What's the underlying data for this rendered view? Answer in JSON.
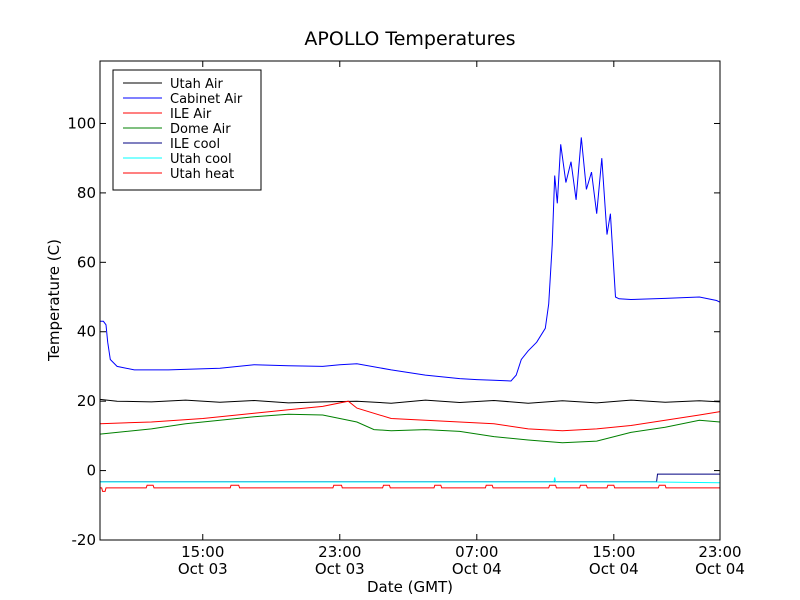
{
  "chart_data": {
    "type": "line",
    "title": "APOLLO Temperatures",
    "xlabel": "Date (GMT)",
    "ylabel": "Temperature (C)",
    "ylim": [
      -20,
      118
    ],
    "xlim": [
      9,
      45.2
    ],
    "x_unit": "hours since Oct 03 00:00 GMT",
    "yticks": [
      {
        "v": -20,
        "label": "-20"
      },
      {
        "v": 0,
        "label": "0"
      },
      {
        "v": 20,
        "label": "20"
      },
      {
        "v": 40,
        "label": "40"
      },
      {
        "v": 60,
        "label": "60"
      },
      {
        "v": 80,
        "label": "80"
      },
      {
        "v": 100,
        "label": "100"
      }
    ],
    "xticks": [
      {
        "v": 15,
        "time": "15:00",
        "date": "Oct 03"
      },
      {
        "v": 23,
        "time": "23:00",
        "date": "Oct 03"
      },
      {
        "v": 31,
        "time": "07:00",
        "date": "Oct 04"
      },
      {
        "v": 39,
        "time": "15:00",
        "date": "Oct 04"
      },
      {
        "v": 47,
        "time": "23:00",
        "date": "Oct 04"
      }
    ],
    "legend_position": "top-left",
    "series": [
      {
        "name": "Utah Air",
        "color": "#000000",
        "x": [
          9,
          10,
          12,
          14,
          16,
          18,
          20,
          22,
          24,
          26,
          28,
          30,
          32,
          34,
          36,
          38,
          40,
          42,
          44,
          45.2
        ],
        "y": [
          20.5,
          20,
          19.8,
          20.3,
          19.7,
          20.2,
          19.5,
          19.8,
          20,
          19.4,
          20.3,
          19.6,
          20.2,
          19.4,
          20.1,
          19.5,
          20.3,
          19.7,
          20.1,
          19.8
        ]
      },
      {
        "name": "Cabinet Air",
        "color": "#0000ff",
        "x": [
          9,
          9.2,
          9.35,
          9.45,
          9.6,
          10,
          11,
          13,
          16,
          18,
          20,
          22,
          23,
          24,
          26,
          28,
          30,
          31,
          32,
          33,
          33.3,
          33.6,
          34,
          34.5,
          35,
          35.2,
          35.4,
          35.55,
          35.7,
          35.9,
          36.2,
          36.5,
          36.8,
          37.1,
          37.4,
          37.7,
          38,
          38.3,
          38.6,
          38.8,
          39,
          39.1,
          39.3,
          40,
          42,
          44,
          45,
          45.2
        ],
        "y": [
          43,
          43,
          42,
          37,
          32,
          30,
          29,
          29,
          29.5,
          30.5,
          30.2,
          30,
          30.5,
          30.8,
          29,
          27.5,
          26.5,
          26.2,
          26,
          25.8,
          27.5,
          32,
          34.5,
          37,
          41,
          48,
          65,
          85,
          77,
          94,
          83,
          89,
          78,
          96,
          81,
          86,
          74,
          90,
          68,
          74,
          58,
          50,
          49.5,
          49.3,
          49.6,
          50,
          49,
          48.5
        ]
      },
      {
        "name": "ILE Air",
        "color": "#ff0000",
        "x": [
          9,
          12,
          15,
          18,
          20,
          22,
          23.5,
          24,
          26,
          30,
          32,
          34,
          36,
          38,
          40,
          42,
          44,
          45.2
        ],
        "y": [
          13.5,
          14,
          15,
          16.5,
          17.5,
          18.5,
          20,
          18,
          15,
          14,
          13.5,
          12,
          11.5,
          12,
          13,
          14.5,
          16,
          17
        ]
      },
      {
        "name": "Dome Air",
        "color": "#008000",
        "x": [
          9,
          10,
          12,
          14,
          16,
          18,
          20,
          22,
          24,
          25,
          26,
          28,
          30,
          32,
          34,
          36,
          38,
          40,
          42,
          44,
          45.2
        ],
        "y": [
          10.5,
          11,
          12,
          13.5,
          14.5,
          15.5,
          16.2,
          16,
          14,
          11.8,
          11.5,
          11.8,
          11.3,
          9.8,
          8.8,
          8,
          8.5,
          11,
          12.5,
          14.5,
          14
        ]
      },
      {
        "name": "ILE cool",
        "color": "#000080",
        "x": [
          9,
          41.5,
          41.55,
          45.2
        ],
        "y": [
          -3.2,
          -3.2,
          -1,
          -1
        ]
      },
      {
        "name": "Utah cool",
        "color": "#00ffff",
        "x": [
          9,
          20,
          35.5,
          35.55,
          35.6,
          41.5,
          45.2
        ],
        "y": [
          -3.3,
          -3.3,
          -3.3,
          -2,
          -3.3,
          -3.3,
          -3.5
        ]
      },
      {
        "name": "Utah heat",
        "color": "#ff0000",
        "x": [
          9,
          9.1,
          9.15,
          9.3,
          9.35,
          11.7,
          11.75,
          12.1,
          12.15,
          16.6,
          16.65,
          17.1,
          17.15,
          22.6,
          22.65,
          23.1,
          23.15,
          25.5,
          25.55,
          25.9,
          25.95,
          28.5,
          28.55,
          28.9,
          28.95,
          31.5,
          31.55,
          31.9,
          31.95,
          35.2,
          35.25,
          35.6,
          35.65,
          37,
          37.05,
          37.4,
          37.45,
          38.6,
          38.65,
          39,
          39.05,
          41.6,
          41.65,
          42,
          42.05,
          45.2
        ],
        "y": [
          -5,
          -5,
          -6,
          -6,
          -5,
          -5,
          -4.2,
          -4.2,
          -5,
          -5,
          -4.2,
          -4.2,
          -5,
          -5,
          -4.2,
          -4.2,
          -5,
          -5,
          -4.2,
          -4.2,
          -5,
          -5,
          -4.2,
          -4.2,
          -5,
          -5,
          -4.2,
          -4.2,
          -5,
          -5,
          -4.2,
          -4.2,
          -5,
          -5,
          -4.2,
          -4.2,
          -5,
          -5,
          -4.2,
          -4.2,
          -5,
          -5,
          -4.2,
          -4.2,
          -5,
          -5
        ]
      }
    ]
  }
}
